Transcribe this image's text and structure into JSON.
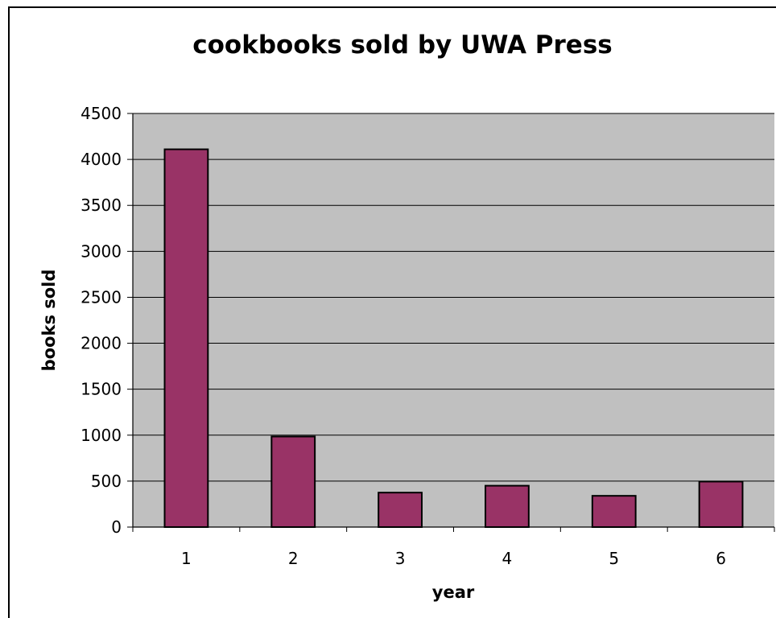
{
  "chart_data": {
    "type": "bar",
    "title": "cookbooks sold by UWA Press",
    "xlabel": "year",
    "ylabel": "books sold",
    "categories": [
      "1",
      "2",
      "3",
      "4",
      "5",
      "6"
    ],
    "values": [
      4110,
      985,
      375,
      450,
      340,
      495
    ],
    "ylim": [
      0,
      4500
    ],
    "yticks": [
      "0",
      "500",
      "1000",
      "1500",
      "2000",
      "2500",
      "3000",
      "3500",
      "4000",
      "4500"
    ],
    "grid": true,
    "legend": "none",
    "colors": {
      "bar_fill": "#993366",
      "plot_background": "#c0c0c0",
      "gridline": "#000000"
    }
  }
}
